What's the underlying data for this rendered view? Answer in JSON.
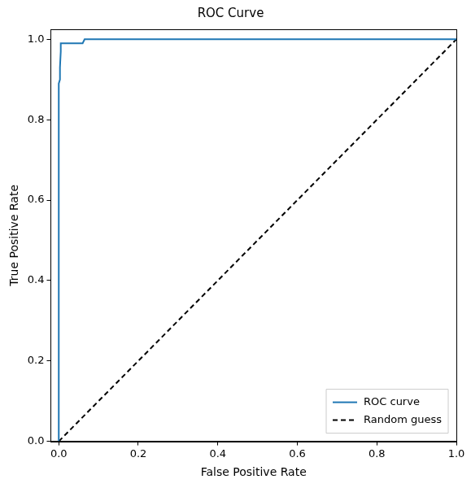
{
  "chart_data": {
    "type": "line",
    "title": "ROC Curve",
    "x_label": "False Positive Rate",
    "y_label": "True Positive Rate",
    "series": [
      {
        "name": "ROC curve",
        "color": "#1f77b4",
        "line_style": "solid",
        "x": [
          0.0,
          0.0,
          0.003,
          0.003,
          0.005,
          0.005,
          0.06,
          0.065,
          1.0
        ],
        "values": [
          0.0,
          0.89,
          0.9,
          0.93,
          0.97,
          0.99,
          0.99,
          1.0,
          1.0
        ]
      },
      {
        "name": "Random guess",
        "color": "#000000",
        "line_style": "dashed",
        "x": [
          0.0,
          1.0
        ],
        "values": [
          0.0,
          1.0
        ]
      }
    ],
    "xlim": [
      -0.02,
      1.0
    ],
    "ylim": [
      0.0,
      1.025
    ],
    "xticks": [
      {
        "value": 0,
        "label": "0.0"
      },
      {
        "value": 0.2,
        "label": "0.2"
      },
      {
        "value": 0.4,
        "label": "0.4"
      },
      {
        "value": 0.6,
        "label": "0.6"
      },
      {
        "value": 0.8,
        "label": "0.8"
      },
      {
        "value": 1.0,
        "label": "1.0"
      }
    ],
    "yticks": [
      {
        "value": 0,
        "label": "0.0"
      },
      {
        "value": 0.2,
        "label": "0.2"
      },
      {
        "value": 0.4,
        "label": "0.4"
      },
      {
        "value": 0.6,
        "label": "0.6"
      },
      {
        "value": 0.8,
        "label": "0.8"
      },
      {
        "value": 1.0,
        "label": "1.0"
      }
    ],
    "grid": false,
    "legend": "lower right"
  }
}
